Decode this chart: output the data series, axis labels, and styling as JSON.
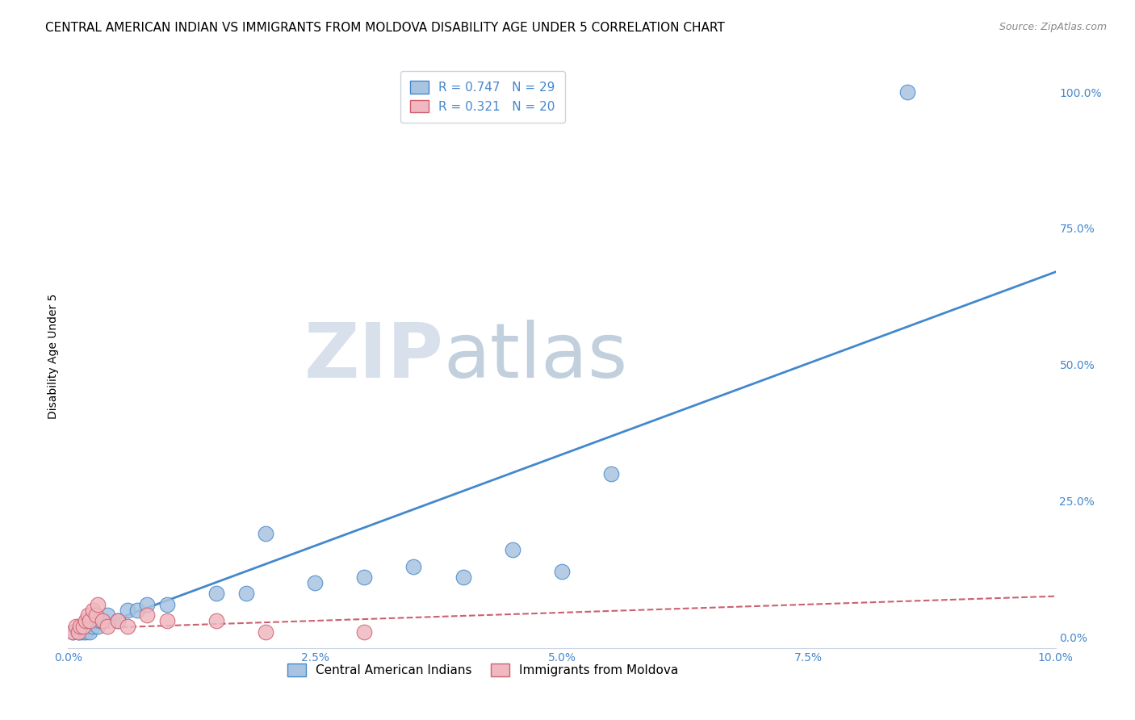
{
  "title": "CENTRAL AMERICAN INDIAN VS IMMIGRANTS FROM MOLDOVA DISABILITY AGE UNDER 5 CORRELATION CHART",
  "source": "Source: ZipAtlas.com",
  "ylabel": "Disability Age Under 5",
  "watermark_zip": "ZIP",
  "watermark_atlas": "atlas",
  "blue_r": 0.747,
  "blue_n": 29,
  "pink_r": 0.321,
  "pink_n": 20,
  "blue_color": "#a8c4e0",
  "blue_line_color": "#4488cc",
  "pink_color": "#f0b8c0",
  "pink_line_color": "#cc6070",
  "ytick_values": [
    0,
    25,
    50,
    75,
    100
  ],
  "xlim": [
    0,
    10
  ],
  "ylim": [
    -2,
    105
  ],
  "blue_scatter_x": [
    0.05,
    0.1,
    0.12,
    0.15,
    0.18,
    0.2,
    0.22,
    0.25,
    0.28,
    0.3,
    0.32,
    0.35,
    0.4,
    0.5,
    0.6,
    0.7,
    0.8,
    1.0,
    1.5,
    1.8,
    2.0,
    2.5,
    3.0,
    3.5,
    4.0,
    4.5,
    5.0,
    5.5,
    8.5
  ],
  "blue_scatter_y": [
    1,
    1,
    1,
    1,
    1,
    2,
    1,
    2,
    3,
    2,
    3,
    3,
    4,
    3,
    5,
    5,
    6,
    6,
    8,
    8,
    19,
    10,
    11,
    13,
    11,
    16,
    12,
    30,
    100
  ],
  "pink_scatter_x": [
    0.05,
    0.08,
    0.1,
    0.12,
    0.15,
    0.18,
    0.2,
    0.22,
    0.25,
    0.28,
    0.3,
    0.35,
    0.4,
    0.5,
    0.6,
    0.8,
    1.0,
    1.5,
    2.0,
    3.0
  ],
  "pink_scatter_y": [
    1,
    2,
    1,
    2,
    2,
    3,
    4,
    3,
    5,
    4,
    6,
    3,
    2,
    3,
    2,
    4,
    3,
    3,
    1,
    1
  ],
  "blue_line_x": [
    0.0,
    10.0
  ],
  "blue_line_y": [
    0.0,
    67.0
  ],
  "pink_line_x": [
    0.0,
    10.0
  ],
  "pink_line_y": [
    1.5,
    7.5
  ],
  "title_fontsize": 11,
  "source_fontsize": 9,
  "legend_fontsize": 11,
  "axis_label_fontsize": 10,
  "tick_fontsize": 10
}
